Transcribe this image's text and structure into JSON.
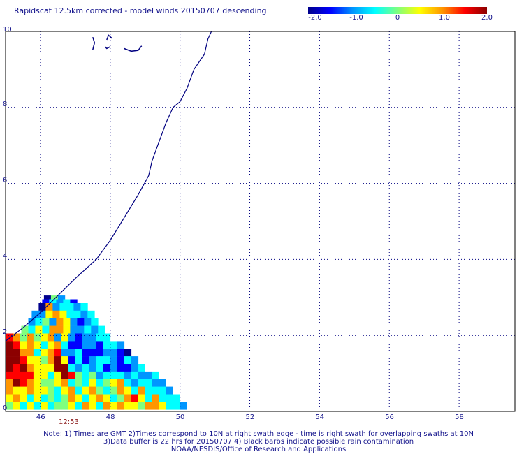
{
  "header": {
    "title": "Rapidscat 12.5km corrected - model winds 20150707 descending"
  },
  "colorbar": {
    "ticks": [
      "-2.0",
      "-1.0",
      "0",
      "1.0",
      "2.0"
    ],
    "tick_values": [
      -2.0,
      -1.0,
      0,
      1.0,
      2.0
    ],
    "range": [
      -2.0,
      2.0
    ],
    "colors": [
      "#00008c",
      "#0000ff",
      "#0096ff",
      "#00ffff",
      "#7fff7f",
      "#ffff00",
      "#ff9600",
      "#ff0000",
      "#8c0000"
    ]
  },
  "map": {
    "lat_ticks": [
      "0",
      "2",
      "4",
      "6",
      "8",
      "10"
    ],
    "lon_ticks": [
      "46",
      "48",
      "50",
      "52",
      "54",
      "56",
      "58"
    ],
    "lat_range": [
      0,
      10
    ],
    "lon_range": [
      45,
      59.6
    ],
    "grid": "dotted",
    "coastline_color": "#000080",
    "coastline": [
      [
        45.0,
        1.85
      ],
      [
        45.5,
        2.2
      ],
      [
        46.0,
        2.6
      ],
      [
        46.5,
        3.05
      ],
      [
        47.0,
        3.5
      ],
      [
        47.6,
        4.0
      ],
      [
        48.0,
        4.5
      ],
      [
        48.4,
        5.1
      ],
      [
        48.8,
        5.7
      ],
      [
        49.1,
        6.2
      ],
      [
        49.2,
        6.6
      ],
      [
        49.4,
        7.1
      ],
      [
        49.6,
        7.6
      ],
      [
        49.8,
        8.0
      ],
      [
        50.0,
        8.15
      ],
      [
        50.2,
        8.5
      ],
      [
        50.4,
        9.0
      ],
      [
        50.7,
        9.4
      ],
      [
        50.8,
        9.8
      ],
      [
        50.9,
        10.0
      ]
    ],
    "islands": [
      [
        [
          47.5,
          9.52
        ],
        [
          47.55,
          9.7
        ],
        [
          47.5,
          9.85
        ]
      ],
      [
        [
          48.4,
          9.55
        ],
        [
          48.6,
          9.48
        ],
        [
          48.8,
          9.5
        ],
        [
          48.9,
          9.62
        ]
      ],
      [
        [
          47.9,
          9.78
        ],
        [
          47.95,
          9.9
        ],
        [
          48.05,
          9.82
        ]
      ],
      [
        [
          47.85,
          9.6
        ],
        [
          47.9,
          9.55
        ],
        [
          48.0,
          9.6
        ]
      ]
    ]
  },
  "swath": {
    "time_label": "12:53",
    "cells_desc": "wind speed difference (model - corrected), values in colorbar units",
    "rows": [
      {
        "lat": 2.95,
        "lon_start": 46.1,
        "values": [
          -1.8,
          0.0,
          -0.8
        ]
      },
      {
        "lat": 2.85,
        "lon_start": 46.05,
        "values": [
          -1.6,
          -0.4,
          -0.9,
          -0.6,
          -1.5
        ]
      },
      {
        "lat": 2.75,
        "lon_start": 45.95,
        "values": [
          -1.8,
          0.9,
          -0.9,
          -0.3,
          -0.6,
          -1.2,
          -0.5
        ]
      },
      {
        "lat": 2.55,
        "lon_start": 45.75,
        "values": [
          -1.2,
          -0.9,
          0.5,
          1.0,
          0.3,
          -0.4,
          -0.7,
          -0.9,
          -0.5
        ]
      },
      {
        "lat": 2.35,
        "lon_start": 45.65,
        "values": [
          -1.2,
          -0.4,
          -0.1,
          -0.8,
          1.1,
          0.5,
          -1.0,
          -1.4,
          -0.8,
          -0.5
        ]
      },
      {
        "lat": 2.15,
        "lon_start": 45.45,
        "values": [
          0.1,
          -0.6,
          0.5,
          -0.3,
          0.8,
          1.0,
          0.4,
          -0.9,
          -1.2,
          -0.6,
          -0.8,
          -0.4
        ]
      },
      {
        "lat": 1.95,
        "lon_start": 45.0,
        "values": [
          1.6,
          0.9,
          0.2,
          1.0,
          -0.2,
          0.5,
          0.9,
          -0.8,
          0.6,
          -1.2,
          -1.5,
          -0.9,
          -1.0,
          -0.7,
          -0.6
        ]
      },
      {
        "lat": 1.75,
        "lon_start": 45.0,
        "values": [
          1.9,
          1.4,
          0.6,
          1.1,
          0.4,
          -0.3,
          0.7,
          1.0,
          -0.6,
          -1.6,
          -1.4,
          -1.2,
          -0.9,
          -1.3,
          -0.5,
          -0.6,
          -0.8
        ]
      },
      {
        "lat": 1.55,
        "lon_start": 45.0,
        "values": [
          2.0,
          1.8,
          1.2,
          0.8,
          -0.6,
          0.5,
          1.2,
          1.6,
          -1.1,
          -1.2,
          -0.5,
          -1.6,
          -1.5,
          -1.3,
          -0.8,
          -0.9,
          -1.6,
          -1.8
        ]
      },
      {
        "lat": 1.35,
        "lon_start": 45.0,
        "values": [
          2.0,
          1.9,
          1.7,
          0.4,
          0.6,
          -0.1,
          0.8,
          2.0,
          0.3,
          -1.3,
          -0.4,
          -1.4,
          -1.1,
          -0.3,
          -0.6,
          -1.2,
          -1.7,
          -0.4,
          -1.0
        ]
      },
      {
        "lat": 1.15,
        "lon_start": 45.0,
        "values": [
          1.9,
          1.3,
          1.9,
          1.2,
          0.4,
          0.5,
          0.3,
          1.8,
          1.9,
          -0.5,
          -0.9,
          -0.6,
          -1.0,
          -0.5,
          -1.3,
          -1.2,
          -1.3,
          -1.4,
          -0.9,
          -0.7
        ]
      },
      {
        "lat": 0.95,
        "lon_start": 45.0,
        "values": [
          1.5,
          1.6,
          1.7,
          1.3,
          0.6,
          0.5,
          -0.3,
          0.6,
          1.9,
          1.7,
          0.2,
          -0.6,
          -0.2,
          -1.2,
          -0.4,
          -0.5,
          -0.7,
          -0.9,
          -0.3,
          -1.2,
          -0.8,
          -0.3
        ]
      },
      {
        "lat": 0.75,
        "lon_start": 45.0,
        "values": [
          1.2,
          1.8,
          1.6,
          0.9,
          0.4,
          0.2,
          -0.2,
          0.3,
          0.8,
          -0.5,
          0.2,
          -0.3,
          0.4,
          -0.5,
          0.1,
          0.7,
          0.9,
          -0.6,
          -0.8,
          -0.4,
          -0.7,
          -1.0,
          -1.2
        ]
      },
      {
        "lat": 0.55,
        "lon_start": 45.0,
        "values": [
          0.9,
          0.5,
          0.3,
          1.2,
          0.4,
          0.3,
          -0.2,
          -0.5,
          0.6,
          1.0,
          -0.4,
          0.3,
          0.8,
          0.1,
          -0.7,
          0.2,
          1.1,
          0.7,
          -0.4,
          0.8,
          -0.6,
          -0.3,
          -0.6,
          -0.8
        ]
      },
      {
        "lat": 0.35,
        "lon_start": 45.0,
        "values": [
          0.4,
          0.9,
          0.5,
          -0.5,
          0.3,
          -0.4,
          -0.2,
          -0.6,
          0.2,
          0.8,
          0.7,
          -0.5,
          0.5,
          1.0,
          0.6,
          -0.3,
          0.2,
          1.1,
          1.3,
          0.5,
          -0.3,
          0.9,
          -0.4,
          -0.7,
          -0.5
        ]
      },
      {
        "lat": 0.15,
        "lon_start": 45.0,
        "values": [
          -0.2,
          0.6,
          -0.3,
          0.4,
          -0.4,
          0.3,
          -0.5,
          0.2,
          -0.1,
          0.6,
          -0.3,
          0.8,
          0.5,
          -0.4,
          0.9,
          0.3,
          1.0,
          0.7,
          0.4,
          -0.2,
          0.9,
          1.2,
          0.3,
          -0.5,
          -0.6,
          -0.9
        ]
      }
    ]
  },
  "footer": {
    "note_line1": "Note: 1) Times are GMT 2)Times correspond to 10N at right swath edge - time is right swath for overlapping swaths at 10N",
    "note_line2": "3)Data buffer is 22 hrs for 20150707 4) Black barbs indicate possible rain contamination",
    "note_line3": "NOAA/NESDIS/Office of Research and Applications"
  }
}
